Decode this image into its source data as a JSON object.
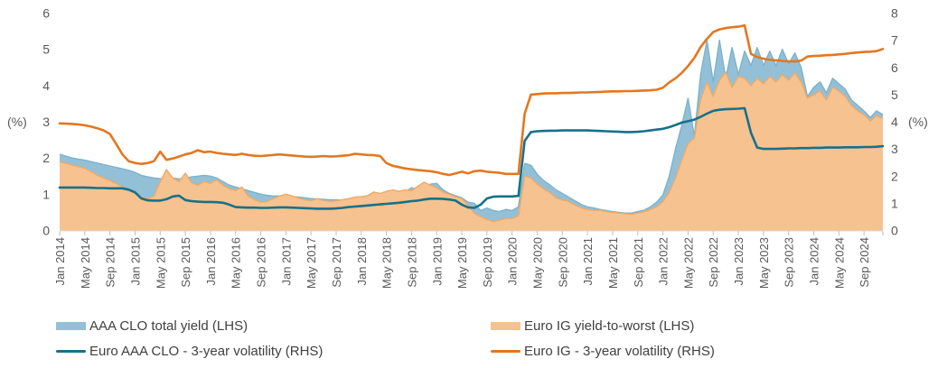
{
  "axes": {
    "left_unit": "(%)",
    "right_unit": "(%)",
    "left_ticks": [
      0,
      1,
      2,
      3,
      4,
      5,
      6
    ],
    "right_ticks": [
      0,
      1,
      2,
      3,
      4,
      5,
      6,
      7,
      8
    ],
    "left_range": [
      0,
      6
    ],
    "right_range": [
      0,
      8
    ],
    "left_unit_at_value": 3,
    "right_unit_at_value": 4
  },
  "legend": {
    "items": [
      {
        "label": "AAA CLO total yield (LHS)",
        "type": "area",
        "color": "#93c0d6"
      },
      {
        "label": "Euro IG yield-to-worst (LHS)",
        "type": "area",
        "color": "#f6c28f"
      },
      {
        "label": "Euro AAA CLO - 3-year volatility (RHS)",
        "type": "line",
        "color": "#17708a"
      },
      {
        "label": "Euro IG - 3-year volatility (RHS)",
        "type": "line",
        "color": "#e4771f"
      }
    ]
  },
  "chart_data": {
    "type": "area+line",
    "x_frequency": "monthly",
    "x_start": "Jan 2014",
    "x_end": "Dec 2024",
    "grid": "off",
    "legend_position": "bottom",
    "tick_labels": [
      "Jan 2014",
      "May 2014",
      "Sep 2014",
      "Jan 2015",
      "May 2015",
      "Sep 2015",
      "Jan 2016",
      "May 2016",
      "Sep 2016",
      "Jan 2017",
      "May 2017",
      "Sep 2017",
      "Jan 2018",
      "May 2018",
      "Sep 2018",
      "Jan 2019",
      "May 2019",
      "Sep 2019",
      "Jan 2020",
      "May 2020",
      "Sep 2020",
      "Jan 2021",
      "May 2021",
      "Sep 2021",
      "Jan 2022",
      "May 2022",
      "Sep 2022",
      "Jan 2023",
      "May 2023",
      "Sep 2023",
      "Jan 2024",
      "May 2024",
      "Sep 2024"
    ],
    "tick_month_step": 4,
    "series": [
      {
        "name": "AAA CLO total yield (LHS)",
        "type": "area",
        "axis": "left",
        "fill": "#93c0d6",
        "edge": "#7db3cb",
        "values": [
          2.1,
          2.05,
          2.0,
          1.97,
          1.94,
          1.9,
          1.86,
          1.82,
          1.78,
          1.74,
          1.7,
          1.66,
          1.6,
          1.52,
          1.48,
          1.45,
          1.43,
          1.42,
          1.45,
          1.42,
          1.45,
          1.48,
          1.5,
          1.52,
          1.5,
          1.45,
          1.35,
          1.25,
          1.2,
          1.15,
          1.1,
          1.05,
          1.0,
          0.97,
          0.95,
          0.95,
          0.95,
          0.93,
          0.92,
          0.9,
          0.88,
          0.87,
          0.86,
          0.85,
          0.85,
          0.84,
          0.84,
          0.86,
          0.88,
          0.9,
          0.92,
          0.95,
          1.0,
          1.03,
          1.0,
          1.06,
          1.18,
          1.12,
          1.2,
          1.28,
          1.3,
          1.12,
          1.02,
          0.96,
          0.9,
          0.78,
          0.75,
          0.55,
          0.62,
          0.55,
          0.52,
          0.58,
          0.55,
          0.65,
          1.85,
          1.8,
          1.55,
          1.38,
          1.26,
          1.12,
          1.02,
          0.92,
          0.82,
          0.72,
          0.65,
          0.62,
          0.58,
          0.55,
          0.52,
          0.5,
          0.48,
          0.48,
          0.52,
          0.56,
          0.65,
          0.78,
          0.98,
          1.5,
          2.25,
          2.9,
          3.65,
          2.6,
          4.3,
          5.25,
          4.1,
          5.25,
          4.2,
          5.05,
          4.3,
          4.95,
          4.55,
          5.05,
          4.55,
          4.95,
          4.55,
          5.0,
          4.6,
          4.9,
          4.5,
          3.7,
          3.95,
          4.1,
          3.8,
          4.2,
          4.05,
          3.9,
          3.6,
          3.45,
          3.3,
          3.12,
          3.3,
          3.2
        ]
      },
      {
        "name": "Euro IG yield-to-worst (LHS)",
        "type": "area",
        "axis": "left",
        "fill": "#f6c28f",
        "edge": "#efa968",
        "values": [
          1.9,
          1.85,
          1.8,
          1.76,
          1.72,
          1.62,
          1.52,
          1.45,
          1.38,
          1.3,
          1.2,
          1.12,
          1.02,
          0.92,
          0.88,
          0.95,
          1.35,
          1.68,
          1.45,
          1.35,
          1.58,
          1.32,
          1.25,
          1.35,
          1.3,
          1.4,
          1.25,
          1.15,
          1.1,
          1.2,
          0.95,
          0.85,
          0.78,
          0.8,
          0.88,
          0.95,
          1.0,
          0.95,
          0.9,
          0.85,
          0.82,
          0.88,
          0.83,
          0.8,
          0.82,
          0.85,
          0.88,
          0.92,
          0.93,
          0.96,
          1.06,
          1.02,
          1.08,
          1.12,
          1.08,
          1.12,
          1.1,
          1.22,
          1.33,
          1.25,
          1.18,
          1.06,
          1.0,
          0.93,
          0.88,
          0.7,
          0.47,
          0.38,
          0.3,
          0.25,
          0.28,
          0.33,
          0.33,
          0.4,
          1.5,
          1.45,
          1.28,
          1.15,
          1.05,
          0.9,
          0.84,
          0.8,
          0.7,
          0.62,
          0.58,
          0.55,
          0.56,
          0.52,
          0.5,
          0.48,
          0.46,
          0.45,
          0.48,
          0.52,
          0.58,
          0.65,
          0.8,
          1.05,
          1.45,
          1.95,
          2.4,
          2.55,
          3.6,
          4.1,
          3.7,
          4.15,
          4.37,
          3.95,
          4.25,
          4.2,
          4.0,
          4.2,
          4.05,
          4.25,
          4.1,
          4.3,
          4.15,
          4.35,
          4.1,
          3.65,
          3.75,
          3.85,
          3.6,
          3.95,
          3.85,
          3.7,
          3.45,
          3.3,
          3.2,
          3.02,
          3.18,
          3.08
        ]
      },
      {
        "name": "Euro AAA CLO - 3-year volatility (RHS)",
        "type": "line",
        "axis": "right",
        "color": "#17708a",
        "values": [
          1.58,
          1.58,
          1.58,
          1.58,
          1.58,
          1.57,
          1.56,
          1.56,
          1.55,
          1.55,
          1.55,
          1.5,
          1.4,
          1.18,
          1.11,
          1.1,
          1.1,
          1.15,
          1.25,
          1.28,
          1.12,
          1.08,
          1.06,
          1.05,
          1.05,
          1.04,
          1.02,
          0.95,
          0.86,
          0.85,
          0.84,
          0.84,
          0.83,
          0.83,
          0.84,
          0.85,
          0.85,
          0.84,
          0.83,
          0.82,
          0.81,
          0.8,
          0.8,
          0.8,
          0.81,
          0.83,
          0.86,
          0.88,
          0.9,
          0.92,
          0.94,
          0.96,
          0.98,
          1.0,
          1.02,
          1.05,
          1.08,
          1.1,
          1.14,
          1.17,
          1.17,
          1.16,
          1.14,
          1.1,
          0.95,
          0.85,
          0.83,
          0.95,
          1.18,
          1.24,
          1.25,
          1.25,
          1.25,
          1.27,
          3.3,
          3.62,
          3.65,
          3.66,
          3.67,
          3.67,
          3.68,
          3.68,
          3.68,
          3.68,
          3.68,
          3.67,
          3.66,
          3.65,
          3.64,
          3.63,
          3.62,
          3.62,
          3.63,
          3.65,
          3.68,
          3.71,
          3.74,
          3.8,
          3.88,
          3.97,
          4.02,
          4.08,
          4.18,
          4.3,
          4.4,
          4.44,
          4.46,
          4.47,
          4.48,
          4.5,
          3.6,
          3.05,
          3.0,
          3.0,
          3.0,
          3.01,
          3.02,
          3.02,
          3.03,
          3.03,
          3.04,
          3.04,
          3.05,
          3.05,
          3.05,
          3.06,
          3.06,
          3.06,
          3.07,
          3.07,
          3.08,
          3.1
        ]
      },
      {
        "name": "Euro IG - 3-year volatility (RHS)",
        "type": "line",
        "axis": "right",
        "color": "#e4771f",
        "values": [
          3.94,
          3.93,
          3.92,
          3.9,
          3.87,
          3.82,
          3.76,
          3.68,
          3.55,
          3.18,
          2.8,
          2.55,
          2.48,
          2.45,
          2.48,
          2.55,
          2.9,
          2.6,
          2.65,
          2.72,
          2.8,
          2.85,
          2.95,
          2.88,
          2.9,
          2.85,
          2.82,
          2.8,
          2.78,
          2.82,
          2.78,
          2.75,
          2.74,
          2.76,
          2.78,
          2.8,
          2.78,
          2.76,
          2.74,
          2.72,
          2.71,
          2.72,
          2.74,
          2.72,
          2.73,
          2.75,
          2.77,
          2.82,
          2.8,
          2.78,
          2.77,
          2.74,
          2.48,
          2.38,
          2.33,
          2.28,
          2.25,
          2.22,
          2.2,
          2.18,
          2.14,
          2.08,
          2.04,
          2.1,
          2.16,
          2.1,
          2.18,
          2.2,
          2.16,
          2.14,
          2.12,
          2.08,
          2.08,
          2.08,
          4.3,
          5.0,
          5.02,
          5.04,
          5.05,
          5.05,
          5.06,
          5.06,
          5.07,
          5.08,
          5.08,
          5.09,
          5.1,
          5.11,
          5.12,
          5.12,
          5.13,
          5.13,
          5.14,
          5.15,
          5.16,
          5.18,
          5.25,
          5.45,
          5.6,
          5.8,
          6.05,
          6.35,
          6.75,
          7.05,
          7.3,
          7.4,
          7.45,
          7.48,
          7.5,
          7.55,
          6.5,
          6.38,
          6.32,
          6.28,
          6.26,
          6.24,
          6.22,
          6.22,
          6.25,
          6.4,
          6.42,
          6.43,
          6.45,
          6.46,
          6.48,
          6.5,
          6.53,
          6.55,
          6.57,
          6.58,
          6.6,
          6.68
        ]
      }
    ]
  },
  "style": {
    "tick_color": "#bfbfbf",
    "baseline_color": "#d9d9d9",
    "axis_text_color": "#595959",
    "legend_text_color": "#404040"
  }
}
